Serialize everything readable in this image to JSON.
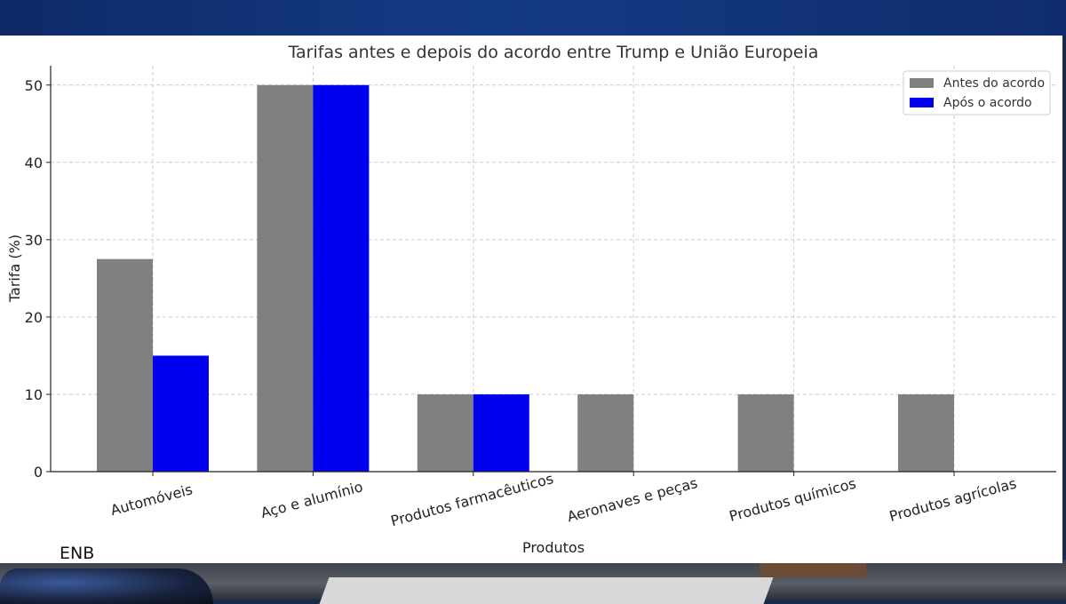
{
  "watermark": "ENB",
  "chart_data": {
    "type": "bar",
    "title": "Tarifas antes e depois do acordo entre Trump e União Europeia",
    "xlabel": "Produtos",
    "ylabel": "Tarifa (%)",
    "ylim": [
      0,
      52.5
    ],
    "yticks": [
      0,
      10,
      20,
      30,
      40,
      50
    ],
    "grid": true,
    "legend_position": "top-right",
    "categories": [
      "Automóveis",
      "Aço e alumínio",
      "Produtos farmacêuticos",
      "Aeronaves e peças",
      "Produtos químicos",
      "Produtos agrícolas"
    ],
    "series": [
      {
        "name": "Antes do acordo",
        "color": "#808080",
        "values": [
          27.5,
          50,
          10,
          10,
          10,
          10
        ]
      },
      {
        "name": "Após o acordo",
        "color": "#0000ee",
        "values": [
          15,
          50,
          10,
          0,
          0,
          0
        ]
      }
    ]
  }
}
